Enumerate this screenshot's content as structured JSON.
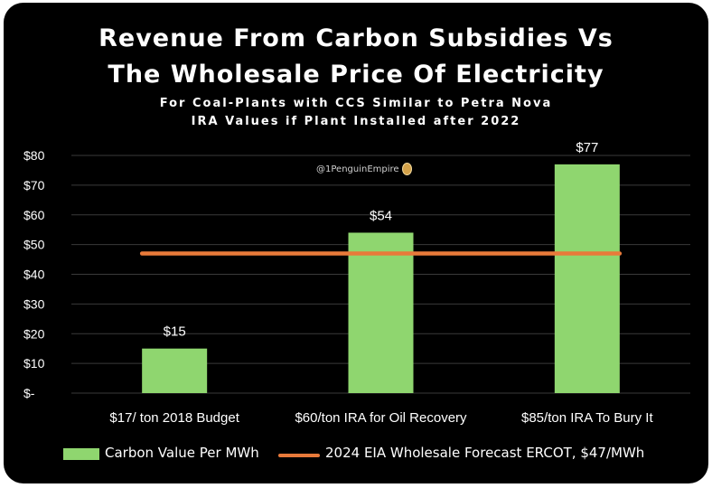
{
  "titles": {
    "line1": "Revenue From Carbon Subsidies Vs",
    "line2": "The Wholesale Price Of Electricity",
    "subtitle1": "For Coal-Plants with CCS Similar to Petra Nova",
    "subtitle2": "IRA Values if Plant Installed after 2022"
  },
  "watermark": "@1PenguinEmpire",
  "colors": {
    "background": "#000000",
    "bar": "#8fd66f",
    "line": "#e87a3a",
    "text": "#ffffff"
  },
  "chart_data": {
    "type": "bar",
    "categories": [
      "$17/ ton  2018 Budget",
      "$60/ton IRA for Oil Recovery",
      "$85/ton IRA To Bury It"
    ],
    "series": [
      {
        "name": "Carbon Value Per MWh",
        "type": "bar",
        "values": [
          15,
          54,
          77
        ],
        "labels": [
          "$15",
          "$54",
          "$77"
        ]
      },
      {
        "name": "2024 EIA Wholesale Forecast ERCOT, $47/MWh",
        "type": "line",
        "values": [
          47,
          47,
          47
        ]
      }
    ],
    "ylim": [
      0,
      80
    ],
    "yticks": [
      0,
      10,
      20,
      30,
      40,
      50,
      60,
      70,
      80
    ],
    "ytick_labels": [
      "$-",
      "$10",
      "$20",
      "$30",
      "$40",
      "$50",
      "$60",
      "$70",
      "$80"
    ],
    "grid": true,
    "legend": "bottom"
  }
}
